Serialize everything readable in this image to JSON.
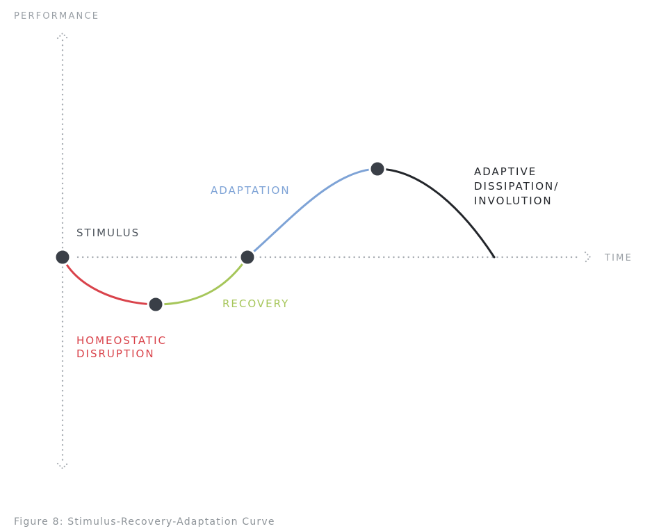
{
  "figure": {
    "caption": "Figure 8: Stimulus-Recovery-Adaptation Curve"
  },
  "axes": {
    "y_label": "PERFORMANCE",
    "x_label": "TIME",
    "style": "dotted"
  },
  "colors": {
    "homeostatic_disruption": "#d9434b",
    "recovery": "#a6c65a",
    "adaptation": "#7ea3d6",
    "adaptive_dissipation": "#23262b",
    "point": "#3a3f47",
    "axis": "#a8adb3",
    "caption": "#8e9499"
  },
  "phases": [
    {
      "id": "stimulus",
      "lines": [
        "STIMULUS"
      ],
      "color": "#4d545c"
    },
    {
      "id": "homeostatic-disruption",
      "lines": [
        "HOMEOSTATIC",
        "DISRUPTION"
      ],
      "color": "#d9434b"
    },
    {
      "id": "recovery",
      "lines": [
        "RECOVERY"
      ],
      "color": "#a6c65a"
    },
    {
      "id": "adaptation",
      "lines": [
        "ADAPTATION"
      ],
      "color": "#7ea3d6"
    },
    {
      "id": "adaptive-dissipation",
      "lines": [
        "ADAPTIVE",
        "DISSIPATION/",
        "INVOLUTION"
      ],
      "color": "#23262b"
    }
  ],
  "points": [
    {
      "id": "stimulus"
    },
    {
      "id": "disruption-low"
    },
    {
      "id": "recovery-baseline"
    },
    {
      "id": "adaptation-peak"
    }
  ]
}
